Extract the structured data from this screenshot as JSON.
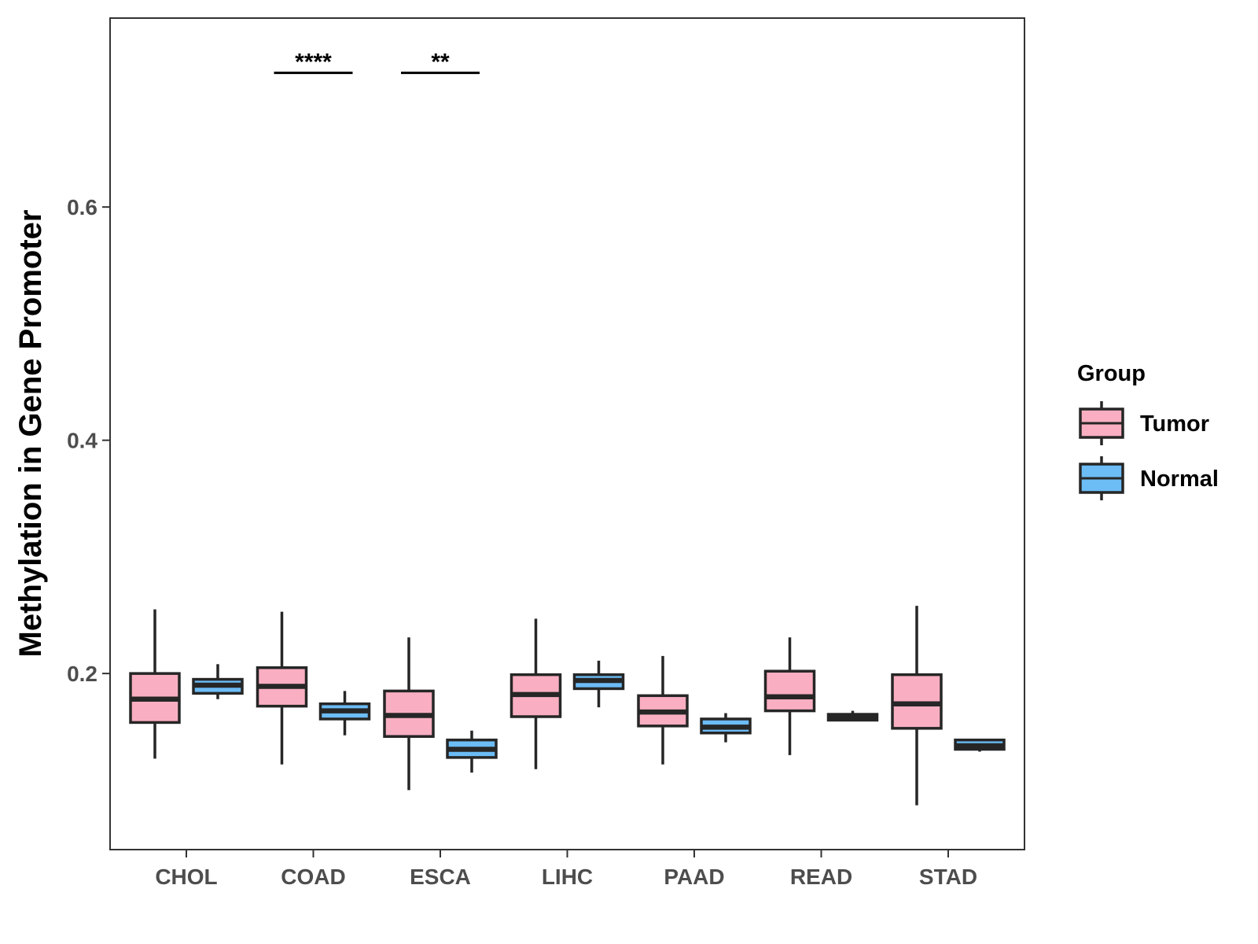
{
  "chart_data": {
    "type": "boxplot",
    "title": "",
    "xlabel": "",
    "ylabel": "Methylation in Gene Promoter",
    "ylim": [
      0.049,
      0.762
    ],
    "yticks": [
      0.2,
      0.4,
      0.6
    ],
    "ytick_labels": [
      "0.2",
      "0.4",
      "0.6"
    ],
    "categories": [
      "CHOL",
      "COAD",
      "ESCA",
      "LIHC",
      "PAAD",
      "READ",
      "STAD"
    ],
    "legend": {
      "title": "Group",
      "position": "right"
    },
    "colors": {
      "Tumor": "#f9afc1",
      "Normal": "#6cbcf6",
      "outline": "#262626"
    },
    "series": [
      {
        "name": "Tumor",
        "boxes": [
          {
            "whisker_low": 0.127,
            "q1": 0.158,
            "median": 0.178,
            "q3": 0.2,
            "whisker_high": 0.255
          },
          {
            "whisker_low": 0.122,
            "q1": 0.172,
            "median": 0.189,
            "q3": 0.205,
            "whisker_high": 0.253
          },
          {
            "whisker_low": 0.1,
            "q1": 0.146,
            "median": 0.164,
            "q3": 0.185,
            "whisker_high": 0.231
          },
          {
            "whisker_low": 0.118,
            "q1": 0.163,
            "median": 0.182,
            "q3": 0.199,
            "whisker_high": 0.247
          },
          {
            "whisker_low": 0.122,
            "q1": 0.155,
            "median": 0.167,
            "q3": 0.181,
            "whisker_high": 0.215
          },
          {
            "whisker_low": 0.13,
            "q1": 0.168,
            "median": 0.18,
            "q3": 0.202,
            "whisker_high": 0.231
          },
          {
            "whisker_low": 0.087,
            "q1": 0.153,
            "median": 0.174,
            "q3": 0.199,
            "whisker_high": 0.258
          }
        ]
      },
      {
        "name": "Normal",
        "boxes": [
          {
            "whisker_low": 0.178,
            "q1": 0.183,
            "median": 0.19,
            "q3": 0.195,
            "whisker_high": 0.208
          },
          {
            "whisker_low": 0.147,
            "q1": 0.161,
            "median": 0.168,
            "q3": 0.174,
            "whisker_high": 0.185
          },
          {
            "whisker_low": 0.115,
            "q1": 0.128,
            "median": 0.135,
            "q3": 0.143,
            "whisker_high": 0.151
          },
          {
            "whisker_low": 0.171,
            "q1": 0.187,
            "median": 0.194,
            "q3": 0.199,
            "whisker_high": 0.211
          },
          {
            "whisker_low": 0.141,
            "q1": 0.149,
            "median": 0.154,
            "q3": 0.161,
            "whisker_high": 0.166
          },
          {
            "whisker_low": 0.16,
            "q1": 0.16,
            "median": 0.163,
            "q3": 0.165,
            "whisker_high": 0.168
          },
          {
            "whisker_low": 0.133,
            "q1": 0.135,
            "median": 0.138,
            "q3": 0.143,
            "whisker_high": 0.144
          }
        ]
      }
    ],
    "annotations": [
      {
        "category": "COAD",
        "label": "****",
        "y": 0.715
      },
      {
        "category": "ESCA",
        "label": "**",
        "y": 0.715
      }
    ]
  }
}
